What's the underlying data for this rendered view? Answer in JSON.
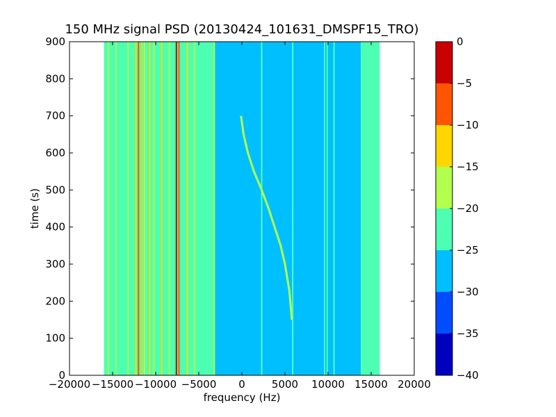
{
  "chart_data": {
    "type": "heatmap",
    "title": "150 MHz signal PSD (20130424_101631_DMSPF15_TRO)",
    "xlabel": "frequency (Hz)",
    "ylabel": "time (s)",
    "xlim": [
      -20000,
      20000
    ],
    "ylim": [
      0,
      900
    ],
    "x_ticks": [
      -20000,
      -15000,
      -10000,
      -5000,
      0,
      5000,
      10000,
      15000,
      20000
    ],
    "x_tick_labels": [
      "−20000",
      "−15000",
      "−10000",
      "−5000",
      "0",
      "5000",
      "10000",
      "15000",
      "20000"
    ],
    "y_ticks": [
      0,
      100,
      200,
      300,
      400,
      500,
      600,
      700,
      800,
      900
    ],
    "y_tick_labels": [
      "0",
      "100",
      "200",
      "300",
      "400",
      "500",
      "600",
      "700",
      "800",
      "900"
    ],
    "data_extent_x": [
      -16000,
      16000
    ],
    "grid": false,
    "colorbar": {
      "levels": [
        -40,
        -35,
        -30,
        -25,
        -20,
        -15,
        -10,
        -5,
        0
      ],
      "tick_labels": [
        "−40",
        "−35",
        "−30",
        "−25",
        "−20",
        "−15",
        "−10",
        "−5",
        "0"
      ],
      "colors": [
        "#0000bf",
        "#004cff",
        "#00bfff",
        "#4dffb3",
        "#b3ff4d",
        "#ffd700",
        "#ff5500",
        "#c80000"
      ]
    },
    "background_bands": [
      {
        "x0": -16000,
        "x1": -3200,
        "level": -22.5
      },
      {
        "x0": -3200,
        "x1": 13800,
        "level": -27.5
      },
      {
        "x0": 13800,
        "x1": 16000,
        "level": -22.5
      }
    ],
    "lines": [
      {
        "x": -15500,
        "level": -17.5
      },
      {
        "x": -14600,
        "level": -17.5
      },
      {
        "x": -13200,
        "level": -17.5
      },
      {
        "x": -12300,
        "level": -12.5
      },
      {
        "x": -12000,
        "level": -7.5
      },
      {
        "x": -11600,
        "level": -12.5
      },
      {
        "x": -11300,
        "level": -17.5
      },
      {
        "x": -10700,
        "level": -12.5
      },
      {
        "x": -10200,
        "level": -17.5
      },
      {
        "x": -9300,
        "level": -12.5
      },
      {
        "x": -8400,
        "level": -17.5
      },
      {
        "x": -7600,
        "level": -2.5
      },
      {
        "x": -7300,
        "level": -7.5
      },
      {
        "x": -6300,
        "level": -12.5
      },
      {
        "x": -5500,
        "level": -17.5
      },
      {
        "x": -3200,
        "level": -17.5
      },
      {
        "x": 2300,
        "level": -22.5
      },
      {
        "x": 5900,
        "level": -22.5
      },
      {
        "x": 9600,
        "level": -22.5
      },
      {
        "x": 9900,
        "level": -22.5
      },
      {
        "x": 10700,
        "level": -22.5
      },
      {
        "x": 13900,
        "level": -22.5
      },
      {
        "x": 14300,
        "level": -22.5
      }
    ],
    "doppler_trace": {
      "level": -17.5,
      "points": [
        {
          "x": 5800,
          "y": 150
        },
        {
          "x": 5500,
          "y": 230
        },
        {
          "x": 5000,
          "y": 300
        },
        {
          "x": 4500,
          "y": 350
        },
        {
          "x": 3800,
          "y": 400
        },
        {
          "x": 3100,
          "y": 450
        },
        {
          "x": 2300,
          "y": 500
        },
        {
          "x": 1400,
          "y": 550
        },
        {
          "x": 700,
          "y": 600
        },
        {
          "x": 200,
          "y": 650
        },
        {
          "x": -100,
          "y": 700
        }
      ]
    }
  }
}
